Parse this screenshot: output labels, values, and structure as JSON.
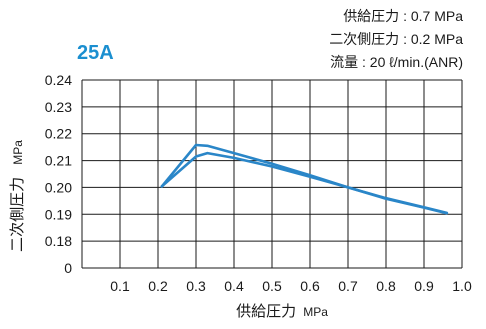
{
  "chart_data": {
    "type": "line",
    "badge": "25A",
    "conditions": [
      "供給圧力 : 0.7 MPa",
      "二次側圧力 : 0.2 MPa",
      "流量 : 20 ℓ/min.(ANR)"
    ],
    "xlabel": "供給圧力",
    "xunit": "MPa",
    "ylabel": "二次側圧力",
    "yunit": "MPa",
    "xlim": [
      0,
      1.0
    ],
    "ylim": [
      0.17,
      0.24
    ],
    "x_ticks": [
      0.1,
      0.2,
      0.3,
      0.4,
      0.5,
      0.6,
      0.7,
      0.8,
      0.9,
      1.0
    ],
    "x_tick_labels": [
      "0.1",
      "0.2",
      "0.3",
      "0.4",
      "0.5",
      "0.6",
      "0.7",
      "0.8",
      "0.9",
      "1.0"
    ],
    "y_ticks": [
      0.17,
      0.18,
      0.19,
      0.2,
      0.21,
      0.22,
      0.23,
      0.24
    ],
    "y_tick_labels": [
      "0",
      "0.18",
      "0.19",
      "0.20",
      "0.21",
      "0.22",
      "0.23",
      "0.24"
    ],
    "grid": true,
    "series": [
      {
        "x": [
          0.21,
          0.3,
          0.33,
          0.4,
          0.5,
          0.6,
          0.7,
          0.8,
          0.9,
          0.96
        ],
        "y": [
          0.2004,
          0.2158,
          0.2155,
          0.2128,
          0.2088,
          0.2045,
          0.2,
          0.1958,
          0.1925,
          0.1904
        ]
      },
      {
        "x": [
          0.21,
          0.3,
          0.33,
          0.4,
          0.5,
          0.6,
          0.7,
          0.8,
          0.9,
          0.96
        ],
        "y": [
          0.2004,
          0.2115,
          0.2128,
          0.211,
          0.2078,
          0.204,
          0.2,
          0.196,
          0.1926,
          0.1905
        ]
      }
    ],
    "colors": {
      "curve": "#2a86c8",
      "badge": "#1b8fd0",
      "grid": "#1a1a1a",
      "text": "#1a1a1a"
    }
  }
}
